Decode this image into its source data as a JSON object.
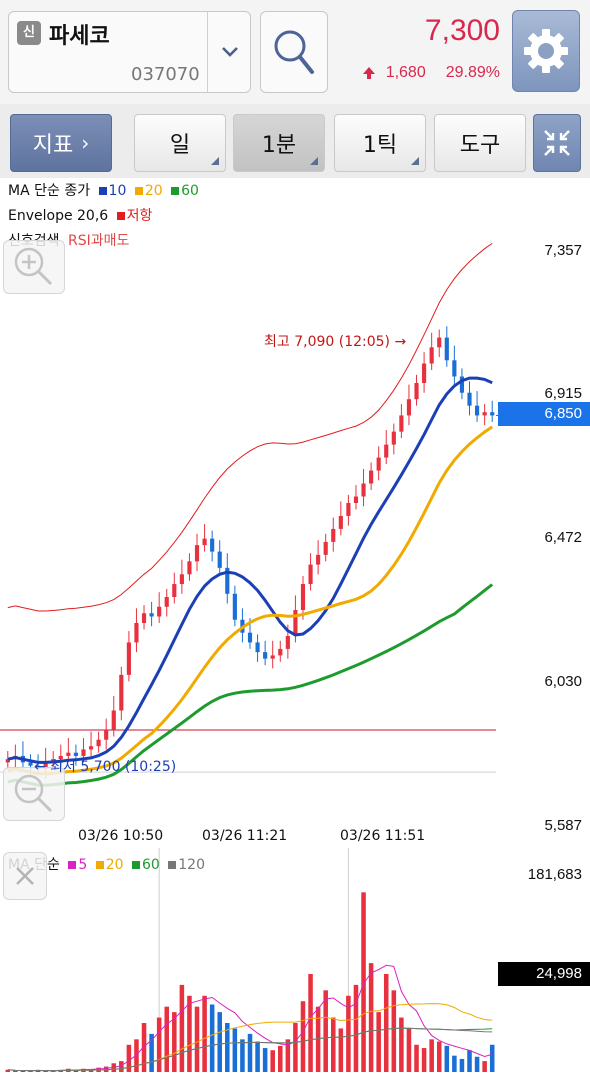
{
  "header": {
    "badge": "신",
    "stock_name": "파세코",
    "stock_code": "037070",
    "price": "7,300",
    "change_arrow": "up-arrow-icon",
    "change": "1,680",
    "change_rate": "29.89%",
    "price_color": "#d8284e"
  },
  "toolbar": {
    "indicator": "지표",
    "indicator_chevron": "›",
    "tabs": [
      "일",
      "1분",
      "1틱"
    ],
    "active_tab": "1분",
    "tools": "도구"
  },
  "price_chart": {
    "legend_ma_prefix": "MA 단순 종가",
    "ma_periods": [
      "10",
      "20",
      "60"
    ],
    "ma_colors": [
      "#1b3fb4",
      "#f0aa00",
      "#1e9b2e"
    ],
    "envelope_label": "Envelope 20,6",
    "envelope_line_label": "저항",
    "envelope_color": "#e01e1e",
    "signal_label": "신호검색",
    "signal_value": "RSI과매도",
    "y_ticks": [
      "7,357",
      "6,915",
      "6,472",
      "6,030",
      "5,587"
    ],
    "current_price_tag": "6,850",
    "high_annotation": "최고 7,090 (12:05) →",
    "low_annotation": "← 최저 5,700 (10:25)",
    "x_ticks": [
      "03/26 10:50",
      "03/26 11:21",
      "03/26 11:51"
    ]
  },
  "volume_chart": {
    "legend_prefix": "MA 단순",
    "ma_periods": [
      "5",
      "20",
      "60",
      "120"
    ],
    "ma_colors": [
      "#d822c4",
      "#f0aa00",
      "#1e9b2e",
      "#777777"
    ],
    "y_max": "181,683",
    "current_tag": "24,998"
  },
  "chart_data": [
    {
      "type": "candlestick",
      "title": "",
      "ylim": [
        5587,
        7357
      ],
      "y_ticks": [
        7357,
        6915,
        6472,
        6030,
        5587
      ],
      "x_tick_labels": [
        "03/26 10:50",
        "03/26 11:21",
        "03/26 11:51"
      ],
      "close_series_approx": [
        5790,
        5800,
        5780,
        5770,
        5760,
        5780,
        5790,
        5800,
        5810,
        5800,
        5820,
        5830,
        5850,
        5880,
        5940,
        6050,
        6150,
        6210,
        6240,
        6230,
        6260,
        6290,
        6330,
        6360,
        6400,
        6450,
        6470,
        6430,
        6380,
        6300,
        6220,
        6180,
        6150,
        6120,
        6100,
        6110,
        6130,
        6170,
        6250,
        6330,
        6390,
        6420,
        6460,
        6500,
        6540,
        6580,
        6600,
        6640,
        6680,
        6720,
        6760,
        6800,
        6850,
        6900,
        6950,
        7010,
        7060,
        7090,
        7020,
        6970,
        6920,
        6880,
        6850,
        6860,
        6850
      ],
      "high": 7090,
      "low": 5700,
      "current": 6850,
      "resistance": 5880
    },
    {
      "type": "bar",
      "title": "",
      "ylim": [
        0,
        181683
      ],
      "current": 24998,
      "values_approx": [
        2,
        1,
        1,
        1,
        2,
        1,
        1,
        2,
        3,
        2,
        3,
        2,
        4,
        5,
        8,
        10,
        25,
        30,
        45,
        35,
        50,
        60,
        55,
        80,
        70,
        60,
        70,
        62,
        55,
        45,
        40,
        30,
        35,
        28,
        22,
        20,
        24,
        30,
        45,
        65,
        90,
        60,
        75,
        50,
        40,
        70,
        80,
        165,
        100,
        55,
        90,
        75,
        50,
        40,
        25,
        22,
        30,
        28,
        24,
        15,
        12,
        20,
        14,
        10,
        25
      ]
    }
  ]
}
